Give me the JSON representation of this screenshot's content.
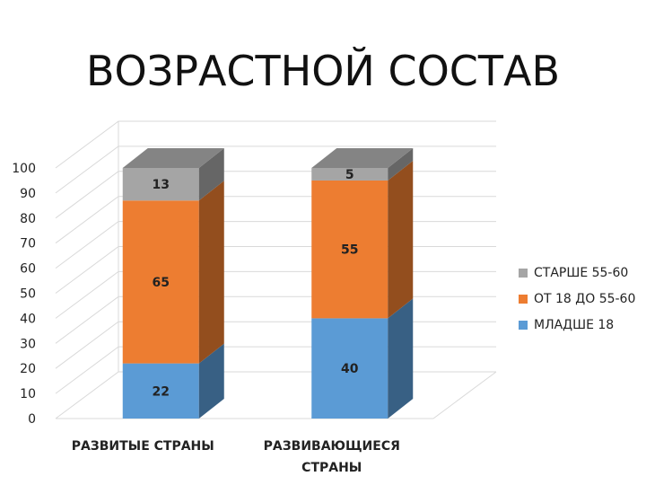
{
  "title": "ВОЗРАСТНОЙ СОСТАВ",
  "chart_data": {
    "type": "bar",
    "stacked": true,
    "three_d": true,
    "categories": [
      [
        "РАЗВИТЫЕ СТРАНЫ"
      ],
      [
        "РАЗВИВАЮЩИЕСЯ",
        "СТРАНЫ"
      ]
    ],
    "series": [
      {
        "name": "МЛАДШЕ 18",
        "values": [
          22,
          40
        ],
        "color": "#5B9BD5"
      },
      {
        "name": "ОТ 18 ДО 55-60",
        "values": [
          65,
          55
        ],
        "color": "#ED7D31"
      },
      {
        "name": "СТАРШЕ 55-60",
        "values": [
          13,
          5
        ],
        "color": "#A5A5A5"
      }
    ],
    "ylim": [
      0,
      100
    ],
    "yticks": [
      0,
      10,
      20,
      30,
      40,
      50,
      60,
      70,
      80,
      90,
      100
    ],
    "grid": true,
    "legend_position": "right",
    "legend_order": [
      "СТАРШЕ 55-60",
      "ОТ 18 ДО 55-60",
      "МЛАДШЕ 18"
    ]
  }
}
